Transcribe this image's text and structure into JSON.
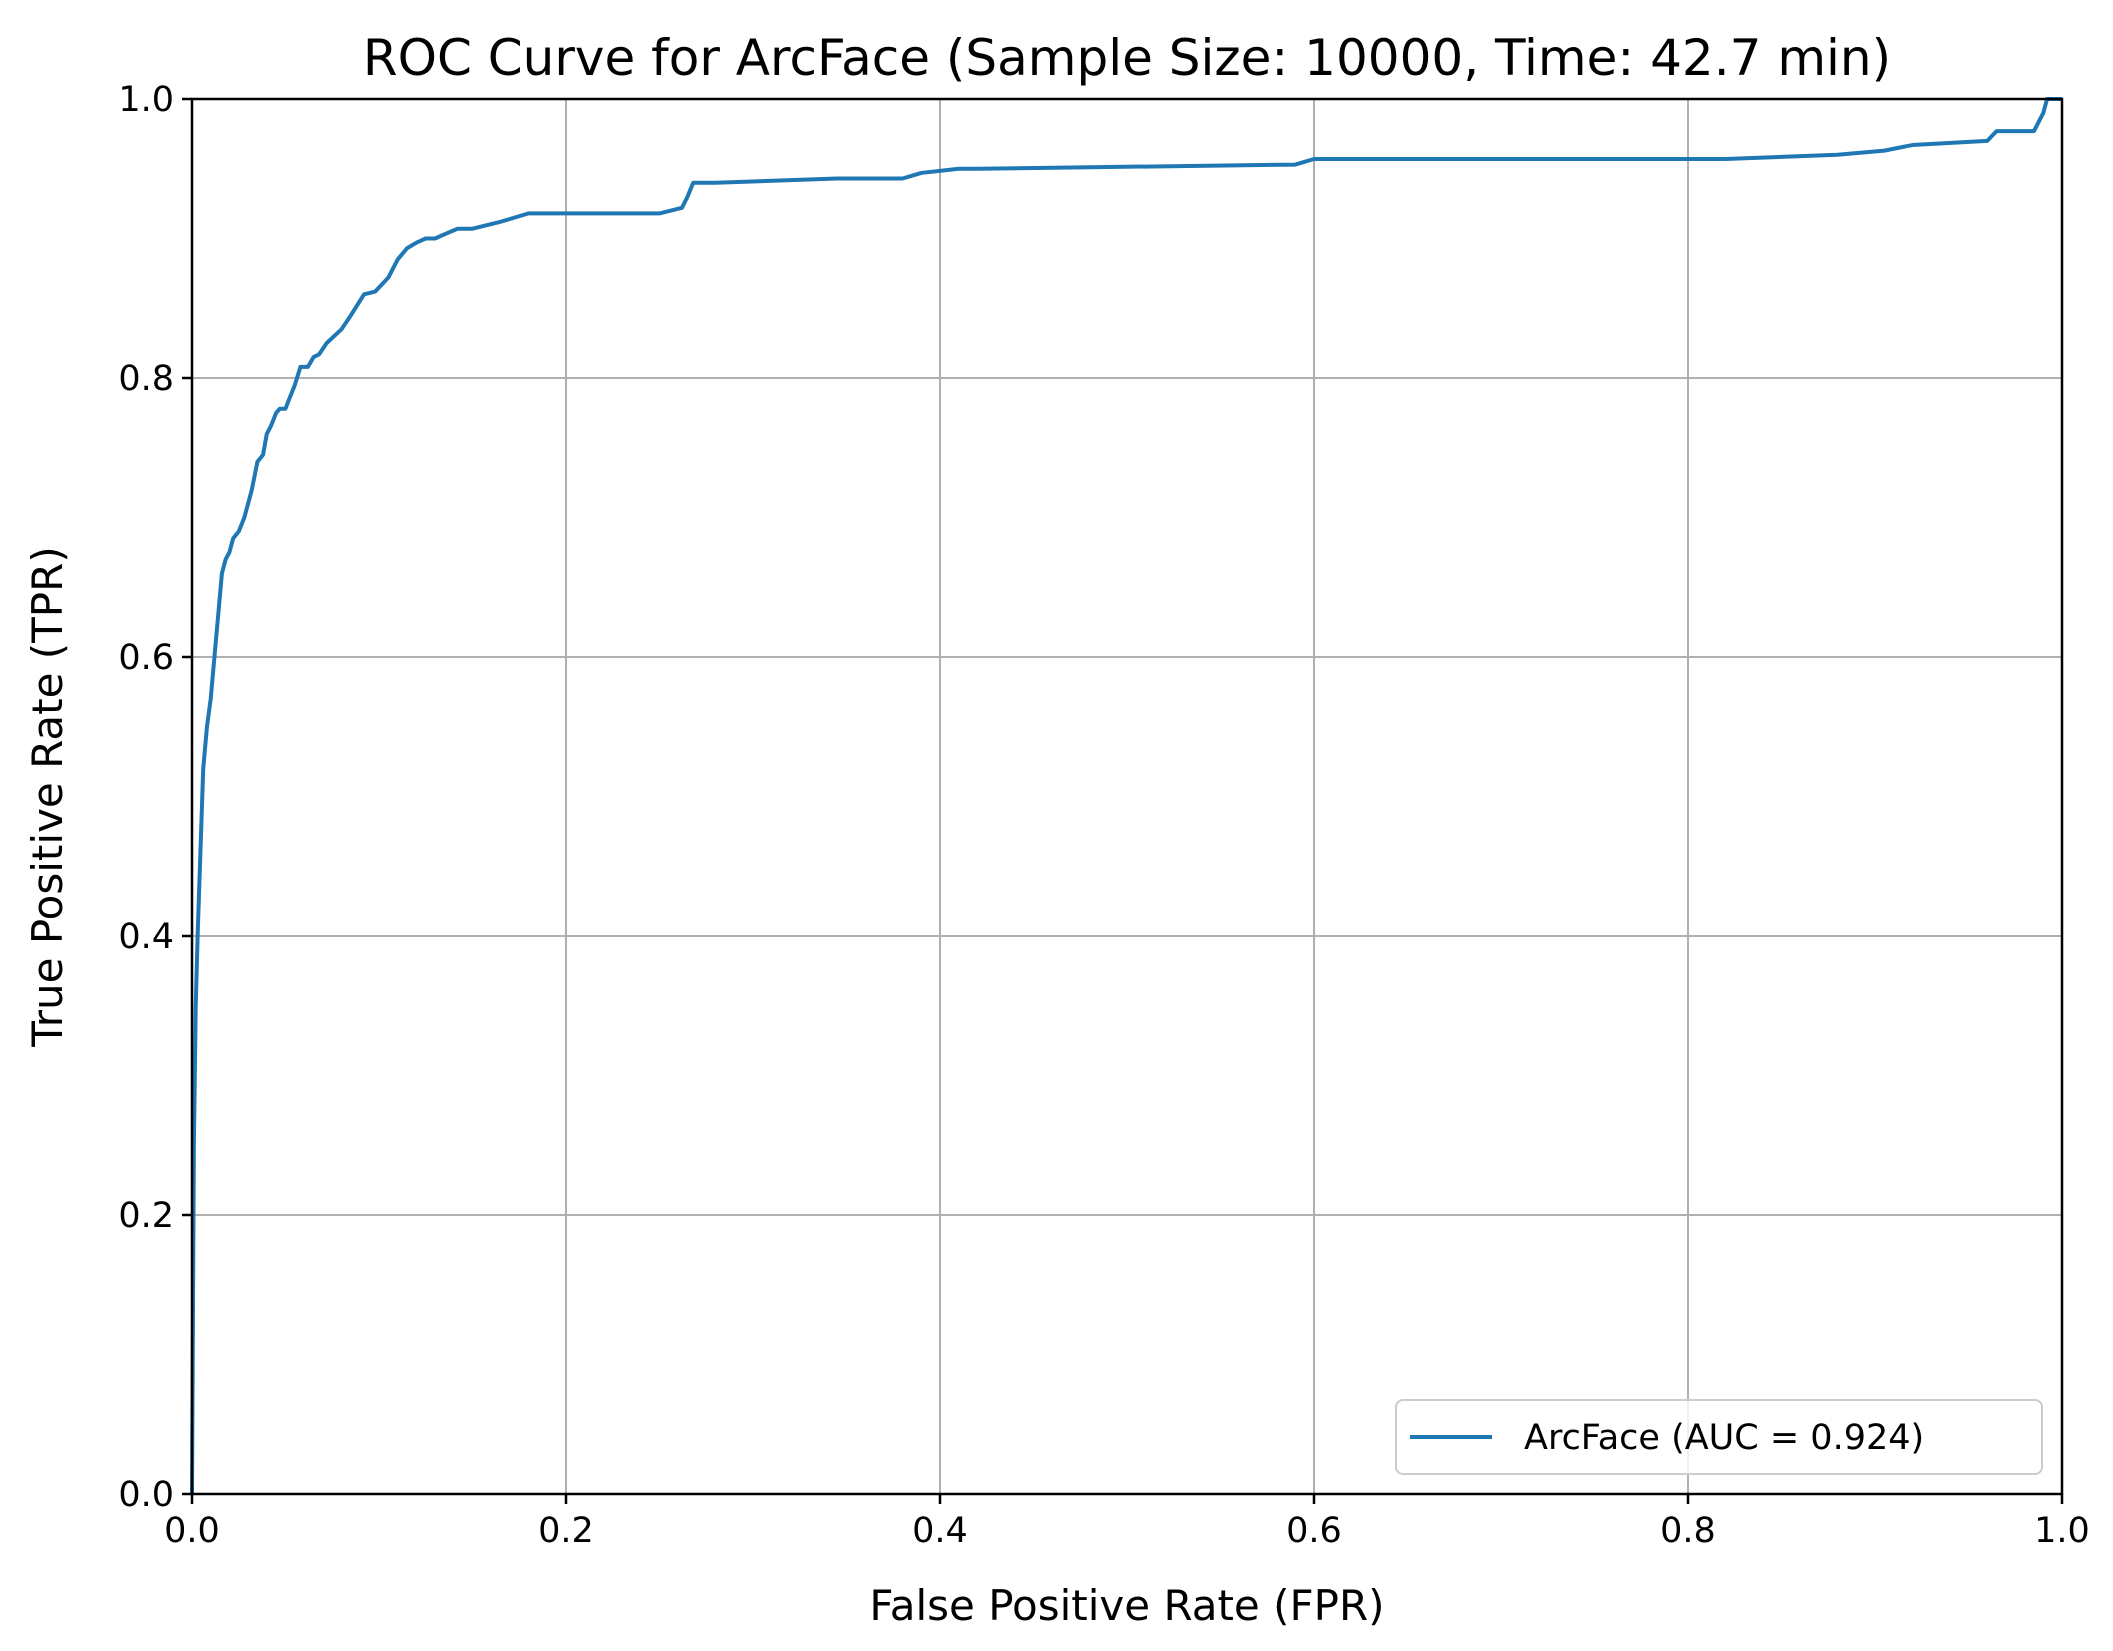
{
  "chart_data": {
    "type": "line",
    "title": "ROC Curve for ArcFace (Sample Size: 10000, Time: 42.7 min)",
    "xlabel": "False Positive Rate (FPR)",
    "ylabel": "True Positive Rate (TPR)",
    "xlim": [
      0.0,
      1.0
    ],
    "ylim": [
      0.0,
      1.0
    ],
    "xticks": [
      "0.0",
      "0.2",
      "0.4",
      "0.6",
      "0.8",
      "1.0"
    ],
    "yticks": [
      "0.0",
      "0.2",
      "0.4",
      "0.6",
      "0.8",
      "1.0"
    ],
    "grid": true,
    "legend_position": "lower-right",
    "series": [
      {
        "name": "ArcFace (AUC = 0.924)",
        "color": "#1f77b4",
        "x": [
          0.0,
          0.001,
          0.002,
          0.003,
          0.004,
          0.005,
          0.006,
          0.008,
          0.01,
          0.012,
          0.014,
          0.016,
          0.017,
          0.018,
          0.02,
          0.022,
          0.025,
          0.028,
          0.032,
          0.035,
          0.038,
          0.04,
          0.042,
          0.045,
          0.047,
          0.05,
          0.052,
          0.055,
          0.058,
          0.062,
          0.065,
          0.068,
          0.072,
          0.08,
          0.085,
          0.092,
          0.098,
          0.105,
          0.11,
          0.115,
          0.12,
          0.125,
          0.13,
          0.135,
          0.142,
          0.15,
          0.165,
          0.18,
          0.195,
          0.2,
          0.25,
          0.262,
          0.265,
          0.268,
          0.28,
          0.345,
          0.38,
          0.39,
          0.41,
          0.42,
          0.59,
          0.6,
          0.82,
          0.88,
          0.905,
          0.92,
          0.96,
          0.965,
          0.985,
          0.99,
          0.992,
          1.0
        ],
        "y": [
          0.0,
          0.25,
          0.35,
          0.4,
          0.44,
          0.48,
          0.52,
          0.55,
          0.57,
          0.6,
          0.63,
          0.66,
          0.665,
          0.67,
          0.675,
          0.685,
          0.69,
          0.7,
          0.72,
          0.74,
          0.745,
          0.76,
          0.765,
          0.775,
          0.778,
          0.778,
          0.785,
          0.795,
          0.808,
          0.808,
          0.815,
          0.817,
          0.825,
          0.835,
          0.845,
          0.86,
          0.862,
          0.872,
          0.885,
          0.893,
          0.897,
          0.9,
          0.9,
          0.903,
          0.907,
          0.907,
          0.912,
          0.918,
          0.918,
          0.918,
          0.918,
          0.922,
          0.93,
          0.94,
          0.94,
          0.943,
          0.943,
          0.947,
          0.95,
          0.95,
          0.953,
          0.957,
          0.957,
          0.96,
          0.963,
          0.967,
          0.97,
          0.977,
          0.977,
          0.99,
          1.0,
          1.0
        ]
      }
    ]
  }
}
